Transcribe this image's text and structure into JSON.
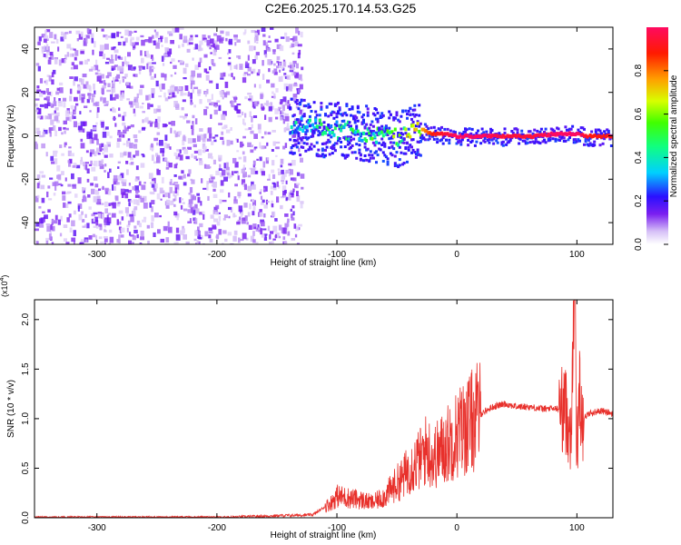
{
  "title": "C2E6.2025.170.14.53.G25",
  "chart_data": [
    {
      "type": "heatmap",
      "xlabel": "Height of straight line (km)",
      "ylabel": "Frequency (Hz)",
      "xlim": [
        -352,
        130
      ],
      "ylim": [
        -50,
        50
      ],
      "xticks": [
        -300,
        -200,
        -100,
        0,
        100
      ],
      "yticks": [
        -40,
        -20,
        0,
        20,
        40
      ],
      "colorbar": {
        "label": "Normalized spectral amplitude",
        "range": [
          0,
          1
        ],
        "ticks": [
          "0.0",
          "0.2",
          "0.4",
          "0.6",
          "0.8"
        ]
      },
      "ridge": [
        {
          "x": -140,
          "y": 5,
          "amp": 0.35
        },
        {
          "x": -120,
          "y": 4,
          "amp": 0.38
        },
        {
          "x": -100,
          "y": 3,
          "amp": 0.4
        },
        {
          "x": -80,
          "y": 2,
          "amp": 0.42
        },
        {
          "x": -60,
          "y": 0,
          "amp": 0.5
        },
        {
          "x": -50,
          "y": -1,
          "amp": 0.55
        },
        {
          "x": -40,
          "y": 1,
          "amp": 0.65
        },
        {
          "x": -30,
          "y": 3,
          "amp": 0.75
        },
        {
          "x": -20,
          "y": 1,
          "amp": 0.9
        },
        {
          "x": -10,
          "y": 1,
          "amp": 0.95
        },
        {
          "x": 0,
          "y": 0,
          "amp": 1.0
        },
        {
          "x": 20,
          "y": 0,
          "amp": 1.0
        },
        {
          "x": 40,
          "y": 0,
          "amp": 0.95
        },
        {
          "x": 60,
          "y": 0,
          "amp": 0.95
        },
        {
          "x": 80,
          "y": 1,
          "amp": 1.0
        },
        {
          "x": 100,
          "y": 1,
          "amp": 1.0
        },
        {
          "x": 110,
          "y": 0,
          "amp": 0.9
        },
        {
          "x": 130,
          "y": 0,
          "amp": 0.9
        }
      ],
      "grid": false
    },
    {
      "type": "line",
      "xlabel": "Height of straight line (km)",
      "ylabel": "SNR (10 * v/v)",
      "yscale_note": "(x10",
      "yscale_exp": "4",
      "xlim": [
        -352,
        130
      ],
      "ylim": [
        0,
        2.2
      ],
      "xticks": [
        -300,
        -200,
        -100,
        0,
        100
      ],
      "yticks": [
        "0.0",
        "0.5",
        "1.0",
        "1.5",
        "2.0"
      ],
      "series": [
        {
          "color": "#e8302b",
          "x": [
            -352,
            -300,
            -250,
            -200,
            -150,
            -120,
            -105,
            -100,
            -90,
            -80,
            -70,
            -60,
            -50,
            -45,
            -40,
            -35,
            -30,
            -25,
            -20,
            -10,
            0,
            10,
            20,
            30,
            40,
            50,
            60,
            70,
            80,
            90,
            95,
            98,
            100,
            102,
            105,
            110,
            120,
            130
          ],
          "y": [
            0.0,
            0.0,
            0.0,
            0.0,
            0.02,
            0.03,
            0.15,
            0.22,
            0.2,
            0.18,
            0.15,
            0.22,
            0.35,
            0.4,
            0.5,
            0.55,
            0.6,
            0.7,
            0.6,
            0.72,
            0.85,
            0.95,
            1.05,
            1.12,
            1.15,
            1.12,
            1.12,
            1.1,
            1.1,
            1.1,
            0.9,
            2.2,
            0.6,
            1.3,
            1.0,
            1.05,
            1.08,
            1.05
          ]
        }
      ],
      "grid": false
    }
  ]
}
